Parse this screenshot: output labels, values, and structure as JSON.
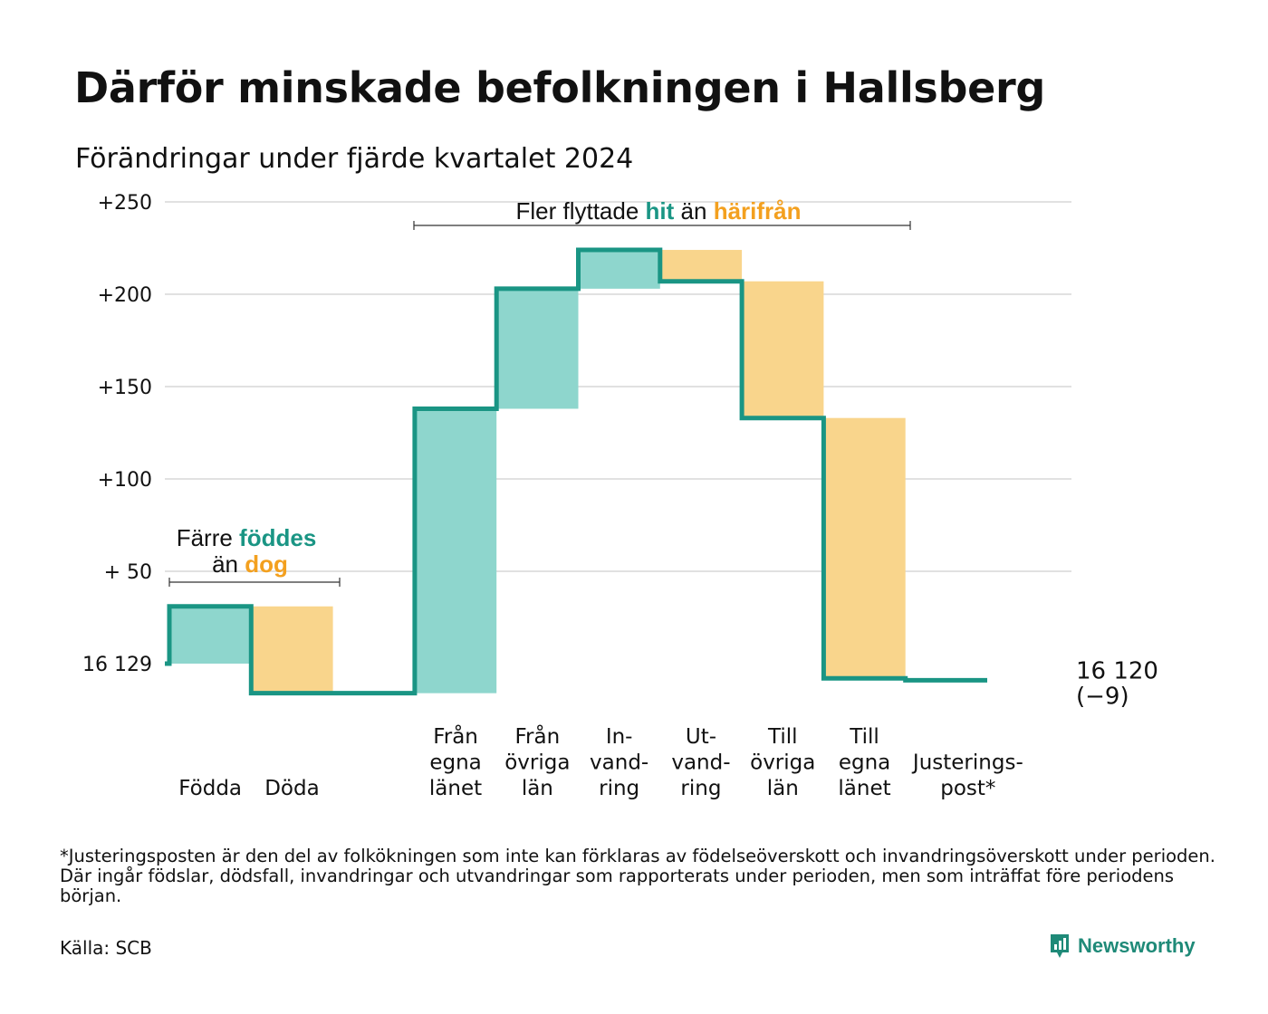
{
  "title": "Därför minskade befolkningen i Hallsberg",
  "subtitle": "Förändringar under fjärde kvartalet 2024",
  "colors": {
    "increase": "#8ed6cd",
    "decrease": "#f9d58c",
    "line": "#1a9584",
    "grid": "#e1e1e1",
    "teal_text": "#1a9584",
    "orange_text": "#f3a01f"
  },
  "chart_data": {
    "type": "waterfall",
    "start_label": "16 129",
    "end_label": "16 120",
    "end_change": "(−9)",
    "yticks": [
      {
        "value": 50,
        "label": "+ 50"
      },
      {
        "value": 100,
        "label": "+100"
      },
      {
        "value": 150,
        "label": "+150"
      },
      {
        "value": 200,
        "label": "+200"
      },
      {
        "value": 250,
        "label": "+250"
      }
    ],
    "ylim": [
      -20,
      250
    ],
    "steps": [
      {
        "label": "Födda",
        "value": 31,
        "direction": "increase"
      },
      {
        "label": "Döda",
        "value": -47,
        "direction": "decrease"
      },
      {
        "label": "",
        "value": 0,
        "direction": "none"
      },
      {
        "label": "Från egna länet",
        "value": 154,
        "direction": "increase"
      },
      {
        "label": "Från övriga län",
        "value": 65,
        "direction": "increase"
      },
      {
        "label": "In-vandring",
        "value": 21,
        "direction": "increase"
      },
      {
        "label": "Ut-vandring",
        "value": -17,
        "direction": "decrease"
      },
      {
        "label": "Till övriga län",
        "value": -74,
        "direction": "decrease"
      },
      {
        "label": "Till egna länet",
        "value": -141,
        "direction": "decrease"
      },
      {
        "label": "Justerings-post*",
        "value": -1,
        "direction": "adjustment"
      }
    ],
    "category_labels": [
      {
        "lines": [
          "Födda"
        ]
      },
      {
        "lines": [
          "Döda"
        ]
      },
      {
        "lines": [
          "Från",
          "egna",
          "länet"
        ]
      },
      {
        "lines": [
          "Från",
          "övriga",
          "län"
        ]
      },
      {
        "lines": [
          "In-",
          "vand-",
          "ring"
        ]
      },
      {
        "lines": [
          "Ut-",
          "vand-",
          "ring"
        ]
      },
      {
        "lines": [
          "Till",
          "övriga",
          "län"
        ]
      },
      {
        "lines": [
          "Till",
          "egna",
          "länet"
        ]
      },
      {
        "lines": [
          "Justerings-",
          "post*"
        ]
      }
    ],
    "annotations": [
      {
        "parts": [
          {
            "text": "Färre",
            "style": "plain"
          },
          {
            "text": "föddes",
            "style": "teal"
          }
        ],
        "line2": [
          {
            "text": "än",
            "style": "plain"
          },
          {
            "text": "dog",
            "style": "orange"
          }
        ]
      },
      {
        "parts": [
          {
            "text": "Fler flyttade",
            "style": "plain"
          },
          {
            "text": "hit",
            "style": "teal"
          },
          {
            "text": "än",
            "style": "plain"
          },
          {
            "text": "härifrån",
            "style": "orange"
          }
        ]
      }
    ]
  },
  "footnote": "*Justeringsposten är den del av folkökningen som inte kan förklaras av födelseöverskott och invandringsöverskott under perioden. Där ingår födslar, dödsfall, invandringar och utvandringar som rapporterats under perioden, men som inträffat före periodens början.",
  "source": "Källa: SCB",
  "brand": {
    "name": "Newsworthy",
    "icon": "newsworthy-logo-icon"
  }
}
